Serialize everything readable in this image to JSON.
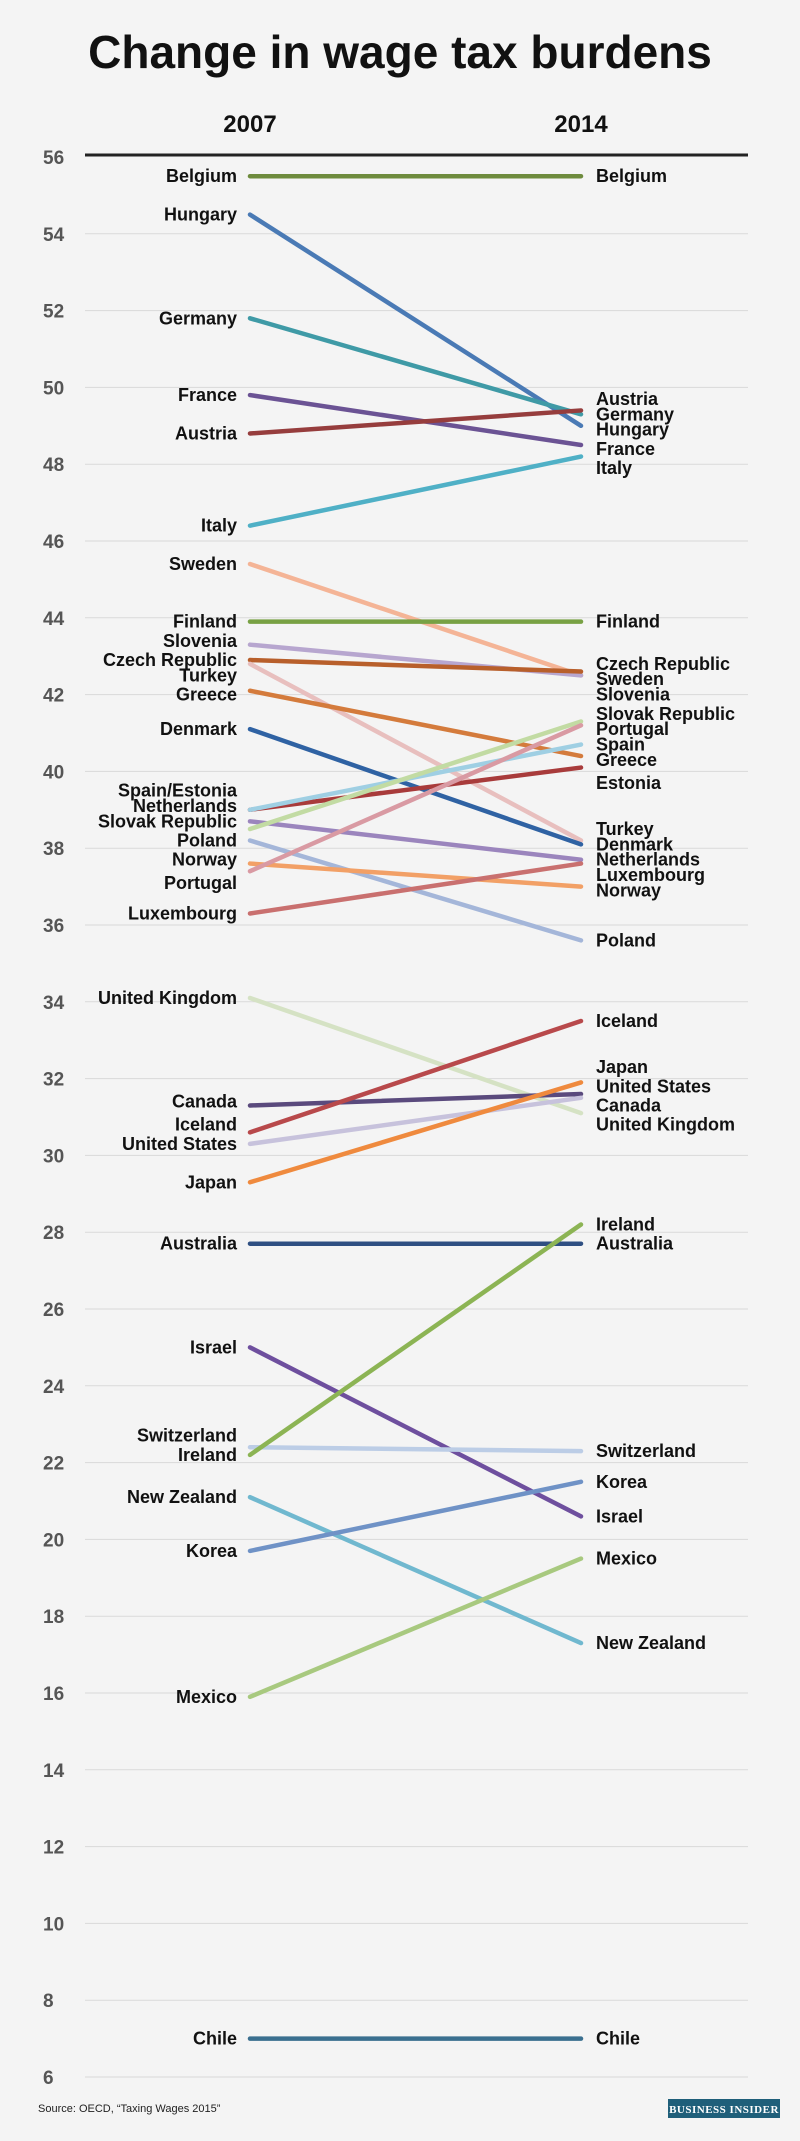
{
  "chart_data": {
    "type": "line",
    "chart_style": "slope",
    "title": "Change in wage tax burdens",
    "x": [
      "2007",
      "2014"
    ],
    "ylabel": "",
    "ylim": [
      6,
      56
    ],
    "yticks": [
      6,
      8,
      10,
      12,
      14,
      16,
      18,
      20,
      22,
      24,
      26,
      28,
      30,
      32,
      34,
      36,
      38,
      40,
      42,
      44,
      46,
      48,
      50,
      52,
      54,
      56
    ],
    "grid": true,
    "series": [
      {
        "name": "Belgium",
        "values": [
          55.5,
          55.5
        ],
        "color": "#6e8b3d"
      },
      {
        "name": "Hungary",
        "values": [
          54.5,
          49.0
        ],
        "color": "#4a7ab5"
      },
      {
        "name": "Germany",
        "values": [
          51.8,
          49.3
        ],
        "color": "#3f9aa6"
      },
      {
        "name": "France",
        "values": [
          49.8,
          48.5
        ],
        "color": "#6b5394"
      },
      {
        "name": "Austria",
        "values": [
          48.8,
          49.4
        ],
        "color": "#963d3d"
      },
      {
        "name": "Italy",
        "values": [
          46.4,
          48.2
        ],
        "color": "#4fb0c6"
      },
      {
        "name": "Sweden",
        "values": [
          45.4,
          42.5
        ],
        "color": "#f4b496"
      },
      {
        "name": "Finland",
        "values": [
          43.9,
          43.9
        ],
        "color": "#78a144"
      },
      {
        "name": "Slovenia",
        "values": [
          43.3,
          42.5
        ],
        "color": "#b7a6cf"
      },
      {
        "name": "Czech Republic",
        "values": [
          42.9,
          42.6
        ],
        "color": "#b85f2b"
      },
      {
        "name": "Turkey",
        "values": [
          42.8,
          38.2
        ],
        "color": "#e8bfbe"
      },
      {
        "name": "Greece",
        "values": [
          42.1,
          40.4
        ],
        "color": "#d47b3c"
      },
      {
        "name": "Denmark",
        "values": [
          41.1,
          38.1
        ],
        "color": "#2f62a3"
      },
      {
        "name": "Estonia",
        "values": [
          39.0,
          40.1
        ],
        "color": "#a83b3b"
      },
      {
        "name": "Spain",
        "values": [
          39.0,
          40.7
        ],
        "color": "#9fcfe3"
      },
      {
        "name": "Netherlands",
        "values": [
          38.7,
          37.7
        ],
        "color": "#9b85bd"
      },
      {
        "name": "Slovak Republic",
        "values": [
          38.5,
          41.3
        ],
        "color": "#c2dba3"
      },
      {
        "name": "Poland",
        "values": [
          38.2,
          35.6
        ],
        "color": "#a4b6d9"
      },
      {
        "name": "Norway",
        "values": [
          37.6,
          37.0
        ],
        "color": "#f2a066"
      },
      {
        "name": "Portugal",
        "values": [
          37.4,
          41.2
        ],
        "color": "#d99aa3"
      },
      {
        "name": "Luxembourg",
        "values": [
          36.3,
          37.6
        ],
        "color": "#c9706f"
      },
      {
        "name": "United Kingdom",
        "values": [
          34.1,
          31.1
        ],
        "color": "#d5e2c4"
      },
      {
        "name": "Canada",
        "values": [
          31.3,
          31.6
        ],
        "color": "#5a4a7d"
      },
      {
        "name": "Iceland",
        "values": [
          30.6,
          33.5
        ],
        "color": "#b8494b"
      },
      {
        "name": "United States",
        "values": [
          30.3,
          31.5
        ],
        "color": "#c7c2dc"
      },
      {
        "name": "Japan",
        "values": [
          29.3,
          31.9
        ],
        "color": "#ef8a3e"
      },
      {
        "name": "Australia",
        "values": [
          27.7,
          27.7
        ],
        "color": "#2f4f82"
      },
      {
        "name": "Israel",
        "values": [
          25.0,
          20.6
        ],
        "color": "#6e4f9e"
      },
      {
        "name": "Switzerland",
        "values": [
          22.4,
          22.3
        ],
        "color": "#bccde6"
      },
      {
        "name": "Ireland",
        "values": [
          22.2,
          28.2
        ],
        "color": "#8cb454"
      },
      {
        "name": "New Zealand",
        "values": [
          21.1,
          17.3
        ],
        "color": "#70b8cf"
      },
      {
        "name": "Korea",
        "values": [
          19.7,
          21.5
        ],
        "color": "#6f92c6"
      },
      {
        "name": "Mexico",
        "values": [
          15.9,
          19.5
        ],
        "color": "#a8c97f"
      },
      {
        "name": "Chile",
        "values": [
          7.0,
          7.0
        ],
        "color": "#3a6f8f"
      }
    ],
    "left_labels": [
      {
        "text": "Belgium",
        "value": 55.5
      },
      {
        "text": "Hungary",
        "value": 54.5
      },
      {
        "text": "Germany",
        "value": 51.8
      },
      {
        "text": "France",
        "value": 49.8
      },
      {
        "text": "Austria",
        "value": 48.8
      },
      {
        "text": "Italy",
        "value": 46.4
      },
      {
        "text": "Sweden",
        "value": 45.4
      },
      {
        "text": "Finland",
        "value": 43.9
      },
      {
        "text": "Slovenia",
        "value": 43.4
      },
      {
        "text": "Czech Republic",
        "value": 42.9
      },
      {
        "text": "Turkey",
        "value": 42.5
      },
      {
        "text": "Greece",
        "value": 42.0
      },
      {
        "text": "Denmark",
        "value": 41.1
      },
      {
        "text": "Spain/Estonia",
        "value": 39.5
      },
      {
        "text": "Netherlands",
        "value": 39.1
      },
      {
        "text": "Slovak Republic",
        "value": 38.7
      },
      {
        "text": "Poland",
        "value": 38.2
      },
      {
        "text": "Norway",
        "value": 37.7
      },
      {
        "text": "Portugal",
        "value": 37.1
      },
      {
        "text": "Luxembourg",
        "value": 36.3
      },
      {
        "text": "United Kingdom",
        "value": 34.1
      },
      {
        "text": "Canada",
        "value": 31.4
      },
      {
        "text": "Iceland",
        "value": 30.8
      },
      {
        "text": "United States",
        "value": 30.3
      },
      {
        "text": "Japan",
        "value": 29.3
      },
      {
        "text": "Australia",
        "value": 27.7
      },
      {
        "text": "Israel",
        "value": 25.0
      },
      {
        "text": "Switzerland",
        "value": 22.7
      },
      {
        "text": "Ireland",
        "value": 22.2
      },
      {
        "text": "New Zealand",
        "value": 21.1
      },
      {
        "text": "Korea",
        "value": 19.7
      },
      {
        "text": "Mexico",
        "value": 15.9
      },
      {
        "text": "Chile",
        "value": 7.0
      }
    ],
    "right_labels": [
      {
        "text": "Belgium",
        "value": 55.5
      },
      {
        "text": "Austria",
        "value": 49.7
      },
      {
        "text": "Germany",
        "value": 49.3
      },
      {
        "text": "Hungary",
        "value": 48.9
      },
      {
        "text": "France",
        "value": 48.4
      },
      {
        "text": "Italy",
        "value": 47.9
      },
      {
        "text": "Finland",
        "value": 43.9
      },
      {
        "text": "Czech Republic",
        "value": 42.8
      },
      {
        "text": "Sweden",
        "value": 42.4
      },
      {
        "text": "Slovenia",
        "value": 42.0
      },
      {
        "text": "Slovak Republic",
        "value": 41.5
      },
      {
        "text": "Portugal",
        "value": 41.1
      },
      {
        "text": "Spain",
        "value": 40.7
      },
      {
        "text": "Greece",
        "value": 40.3
      },
      {
        "text": "Estonia",
        "value": 39.7
      },
      {
        "text": "Turkey",
        "value": 38.5
      },
      {
        "text": "Denmark",
        "value": 38.1
      },
      {
        "text": "Netherlands",
        "value": 37.7
      },
      {
        "text": "Luxembourg",
        "value": 37.3
      },
      {
        "text": "Norway",
        "value": 36.9
      },
      {
        "text": "Poland",
        "value": 35.6
      },
      {
        "text": "Iceland",
        "value": 33.5
      },
      {
        "text": "Japan",
        "value": 32.3
      },
      {
        "text": "United States",
        "value": 31.8
      },
      {
        "text": "Canada",
        "value": 31.3
      },
      {
        "text": "United Kingdom",
        "value": 30.8
      },
      {
        "text": "Ireland",
        "value": 28.2
      },
      {
        "text": "Australia",
        "value": 27.7
      },
      {
        "text": "Switzerland",
        "value": 22.3
      },
      {
        "text": "Korea",
        "value": 21.5
      },
      {
        "text": "Israel",
        "value": 20.6
      },
      {
        "text": "Mexico",
        "value": 19.5
      },
      {
        "text": "New Zealand",
        "value": 17.3
      },
      {
        "text": "Chile",
        "value": 7.0
      }
    ]
  },
  "footer": {
    "source": "Source: OECD, “Taxing Wages 2015”",
    "brand": "BUSINESS INSIDER"
  },
  "colors": {
    "background": "#f4f4f4",
    "gridline": "#d9d9d9",
    "axis_line": "#222222",
    "brand_bg": "#1f5f7a"
  }
}
